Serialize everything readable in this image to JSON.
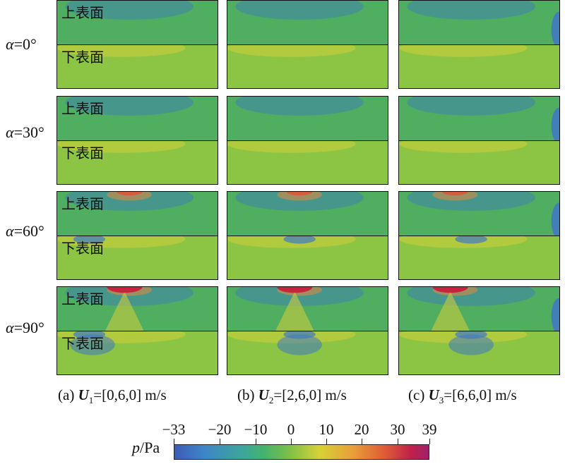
{
  "surface_labels": {
    "upper": "上表面",
    "lower": "下表面"
  },
  "row_labels": [
    {
      "symbol": "α",
      "value": "=0°"
    },
    {
      "symbol": "α",
      "value": "=30°"
    },
    {
      "symbol": "α",
      "value": "=60°"
    },
    {
      "symbol": "α",
      "value": "=90°"
    }
  ],
  "column_captions": [
    {
      "prefix": "(a) ",
      "symbol": "U",
      "sub": "1",
      "value": "=[0,6,0] m/s"
    },
    {
      "prefix": "(b) ",
      "symbol": "U",
      "sub": "2",
      "value": "=[2,6,0] m/s"
    },
    {
      "prefix": "(c) ",
      "symbol": "U",
      "sub": "3",
      "value": "=[6,6,0] m/s"
    }
  ],
  "colorbar": {
    "var": "p",
    "unit": "/Pa",
    "min": -33,
    "max": 39,
    "ticks": [
      "−33",
      "−20",
      "−10",
      "0",
      "10",
      "20",
      "30",
      "39"
    ],
    "tick_values": [
      -33,
      -20,
      -10,
      0,
      10,
      20,
      30,
      39
    ]
  },
  "colors": {
    "background_green": "#5fb85a",
    "upper_base": "#4fae60",
    "lower_base": "#8cc443",
    "blue": "#3f79c4",
    "red": "#c8203e",
    "orange": "#e38a3a",
    "yellow": "#d7cf3a"
  }
}
